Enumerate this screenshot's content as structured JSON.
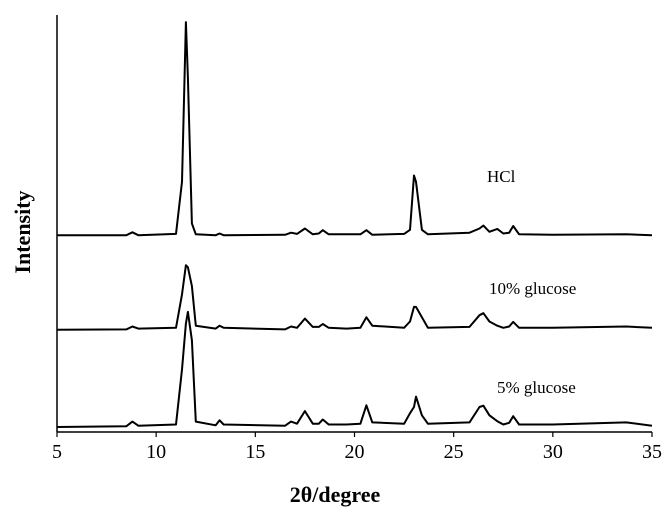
{
  "chart_data": {
    "type": "line",
    "xlabel": "2θ/degree",
    "ylabel": "Intensity",
    "xlim": [
      5,
      35
    ],
    "ylim": [
      0,
      100
    ],
    "xticks": [
      5,
      10,
      15,
      20,
      25,
      30,
      35
    ],
    "x": [
      5,
      8.5,
      8.8,
      9.1,
      11.0,
      11.3,
      11.5,
      11.6,
      11.8,
      12.0,
      13.0,
      13.2,
      13.4,
      16.5,
      16.8,
      17.1,
      17.5,
      17.9,
      18.2,
      18.4,
      18.7,
      19.6,
      20.3,
      20.6,
      20.9,
      22.5,
      22.8,
      23.0,
      23.1,
      23.4,
      23.7,
      25.8,
      26.3,
      26.5,
      26.8,
      27.2,
      27.5,
      27.8,
      28.0,
      28.3,
      30.0,
      33.7,
      35
    ],
    "series": [
      {
        "name": "HCl",
        "color": "#000000",
        "values": [
          47.2,
          47.2,
          47.9,
          47.2,
          47.5,
          60,
          98.3,
          85,
          50,
          47.4,
          47.2,
          47.6,
          47.2,
          47.3,
          47.8,
          47.5,
          48.8,
          47.4,
          47.6,
          48.4,
          47.4,
          47.4,
          47.4,
          48.4,
          47.3,
          47.5,
          48.5,
          61.5,
          60,
          48.5,
          47.4,
          47.8,
          48.8,
          49.5,
          48,
          48.7,
          47.6,
          47.8,
          49.4,
          47.4,
          47.3,
          47.4,
          47.2
        ]
      },
      {
        "name": "10% glucose",
        "color": "#000000",
        "values": [
          24.5,
          24.6,
          25.3,
          24.8,
          25,
          33,
          40,
          39.5,
          35,
          25.5,
          24.8,
          25.5,
          25,
          24.6,
          25.3,
          25,
          27.2,
          25.2,
          25.2,
          25.9,
          25,
          24.8,
          25,
          27.5,
          25.5,
          25,
          26.5,
          30,
          30,
          27.5,
          25,
          25.2,
          28,
          28.5,
          26.5,
          25.5,
          25,
          25.3,
          26.4,
          25,
          25,
          25.3,
          25
        ]
      },
      {
        "name": "5% glucose",
        "color": "#000000",
        "values": [
          1.2,
          1.4,
          2.5,
          1.5,
          1.8,
          15,
          26,
          28.8,
          22,
          2.5,
          1.6,
          2.8,
          1.8,
          1.5,
          2.5,
          2,
          5,
          2,
          2,
          3,
          1.8,
          1.8,
          2,
          6.4,
          2.3,
          2,
          4.5,
          6,
          8.5,
          4,
          2,
          2.3,
          6,
          6.3,
          4,
          2.6,
          1.8,
          2.2,
          3.8,
          1.8,
          1.8,
          2.3,
          1.5
        ]
      }
    ]
  }
}
